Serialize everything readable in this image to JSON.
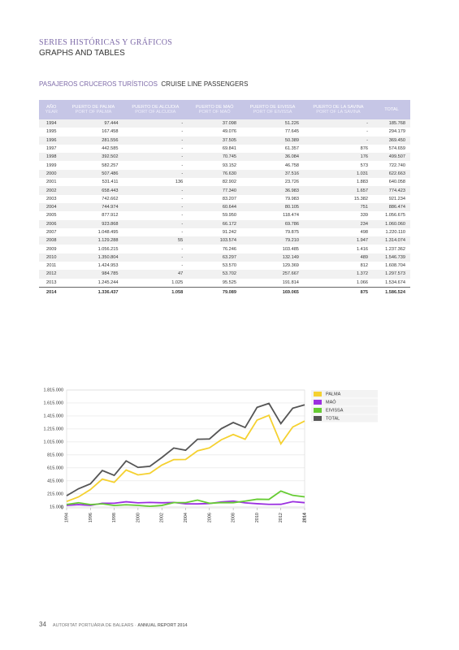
{
  "header": {
    "title": "SERIES HISTÓRICAS Y GRÁFICOS",
    "subtitle": "GRAPHS AND TABLES"
  },
  "section": {
    "title_es": "PASAJEROS CRUCEROS TURÍSTICOS",
    "title_en": "CRUISE LINE PASSENGERS"
  },
  "table": {
    "header": [
      [
        "AÑO",
        "YEAR"
      ],
      [
        "PUERTO DE PALMA",
        "PORT OF PALMA"
      ],
      [
        "PUERTO DE ALCUDIA",
        "PORT OF ALCUDIA"
      ],
      [
        "PUERTO DE MAÓ",
        "PORT OF MAÓ"
      ],
      [
        "PUERTO DE EIVISSA",
        "PORT OF EIVISSA"
      ],
      [
        "PUERTO DE LA SAVINA",
        "PORT OF LA SAVINA"
      ],
      [
        "TOTAL"
      ]
    ],
    "rows": [
      [
        "1994",
        "97.444",
        "-",
        "37.098",
        "51.226",
        "-",
        "185.768"
      ],
      [
        "1995",
        "167.458",
        "-",
        "49.076",
        "77.645",
        "-",
        "294.179"
      ],
      [
        "1996",
        "281.556",
        "-",
        "37.505",
        "50.389",
        "-",
        "369.450"
      ],
      [
        "1997",
        "442.585",
        "-",
        "69.841",
        "61.357",
        "876",
        "574.659"
      ],
      [
        "1998",
        "392.502",
        "-",
        "70.745",
        "36.084",
        "176",
        "499.507"
      ],
      [
        "1999",
        "582.257",
        "-",
        "93.152",
        "46.758",
        "573",
        "722.740"
      ],
      [
        "2000",
        "507.486",
        "-",
        "76.630",
        "37.516",
        "1.031",
        "622.663"
      ],
      [
        "2001",
        "531.411",
        "136",
        "82.902",
        "23.726",
        "1.883",
        "640.058"
      ],
      [
        "2002",
        "658.443",
        "-",
        "77.340",
        "36.983",
        "1.657",
        "774.423"
      ],
      [
        "2003",
        "742.662",
        "-",
        "83.207",
        "79.983",
        "15.382",
        "921.234"
      ],
      [
        "2004",
        "744.974",
        "-",
        "60.644",
        "80.105",
        "751",
        "886.474"
      ],
      [
        "2005",
        "877.912",
        "-",
        "59.950",
        "118.474",
        "339",
        "1.056.675"
      ],
      [
        "2006",
        "923.868",
        "-",
        "66.172",
        "69.786",
        "234",
        "1.060.060"
      ],
      [
        "2007",
        "1.048.495",
        "-",
        "91.242",
        "79.875",
        "498",
        "1.220.110"
      ],
      [
        "2008",
        "1.129.288",
        "55",
        "103.574",
        "79.210",
        "1.947",
        "1.314.074"
      ],
      [
        "2009",
        "1.056.215",
        "-",
        "76.246",
        "103.485",
        "1.416",
        "1.237.362"
      ],
      [
        "2010",
        "1.350.804",
        "-",
        "63.297",
        "132.149",
        "489",
        "1.546.739"
      ],
      [
        "2011",
        "1.424.953",
        "-",
        "53.570",
        "129.369",
        "812",
        "1.608.704"
      ],
      [
        "2012",
        "984.785",
        "47",
        "53.702",
        "257.667",
        "1.372",
        "1.297.573"
      ],
      [
        "2013",
        "1.245.244",
        "1.025",
        "95.525",
        "191.814",
        "1.066",
        "1.534.674"
      ],
      [
        "2014",
        "1.336.437",
        "1.058",
        "79.089",
        "169.065",
        "875",
        "1.586.524"
      ]
    ]
  },
  "chart_data": {
    "type": "line",
    "x": [
      1994,
      1995,
      1996,
      1997,
      1998,
      1999,
      2000,
      2001,
      2002,
      2003,
      2004,
      2005,
      2006,
      2007,
      2008,
      2009,
      2010,
      2011,
      2012,
      2013,
      2014
    ],
    "xlim": [
      1994,
      2014
    ],
    "xticks": [
      1994,
      1996,
      1998,
      2000,
      2002,
      2004,
      2006,
      2008,
      2010,
      2012,
      2014
    ],
    "ylim": [
      0,
      1815000
    ],
    "yticks": [
      0,
      {
        "value": 15000,
        "label": "15.000"
      },
      {
        "value": 215000,
        "label": "215.000"
      },
      {
        "value": 415000,
        "label": "415.000"
      },
      {
        "value": 615000,
        "label": "615.000"
      },
      {
        "value": 815000,
        "label": "815.000"
      },
      {
        "value": 1015000,
        "label": "1.015.000"
      },
      {
        "value": 1215000,
        "label": "1.215.000"
      },
      {
        "value": 1415000,
        "label": "1.415.000"
      },
      {
        "value": 1615000,
        "label": "1.615.000"
      },
      {
        "value": 1815000,
        "label": "1.815.000"
      }
    ],
    "grid": true,
    "legend": "right",
    "series": [
      {
        "name": "PALMA",
        "color": "#f5d130",
        "values": [
          97444,
          167458,
          281556,
          442585,
          392502,
          582257,
          507486,
          531411,
          658443,
          742662,
          744974,
          877912,
          923868,
          1048495,
          1129288,
          1056215,
          1350804,
          1424953,
          984785,
          1245244,
          1336437
        ]
      },
      {
        "name": "MAÓ",
        "color": "#9b30e0",
        "values": [
          37098,
          49076,
          37505,
          69841,
          70745,
          93152,
          76630,
          82902,
          77340,
          83207,
          60644,
          59950,
          66172,
          91242,
          103574,
          76246,
          63297,
          53570,
          53702,
          95525,
          79089
        ]
      },
      {
        "name": "EIVISSA",
        "color": "#66cc33",
        "values": [
          51226,
          77645,
          50389,
          61357,
          36084,
          46758,
          37516,
          23726,
          36983,
          79983,
          80105,
          118474,
          69786,
          79875,
          79210,
          103485,
          132149,
          129369,
          257667,
          191814,
          169065
        ]
      },
      {
        "name": "TOTAL",
        "color": "#555555",
        "values": [
          185768,
          294179,
          369450,
          574659,
          499507,
          722740,
          622663,
          640058,
          774423,
          921234,
          886474,
          1056675,
          1060060,
          1220110,
          1314074,
          1237362,
          1546739,
          1608704,
          1297573,
          1534674,
          1586524
        ]
      }
    ]
  },
  "footer": {
    "page": "34",
    "org": "AUTORITAT PORTUÀRIA DE BALEARS",
    "report": "ANNUAL REPORT 2014"
  }
}
